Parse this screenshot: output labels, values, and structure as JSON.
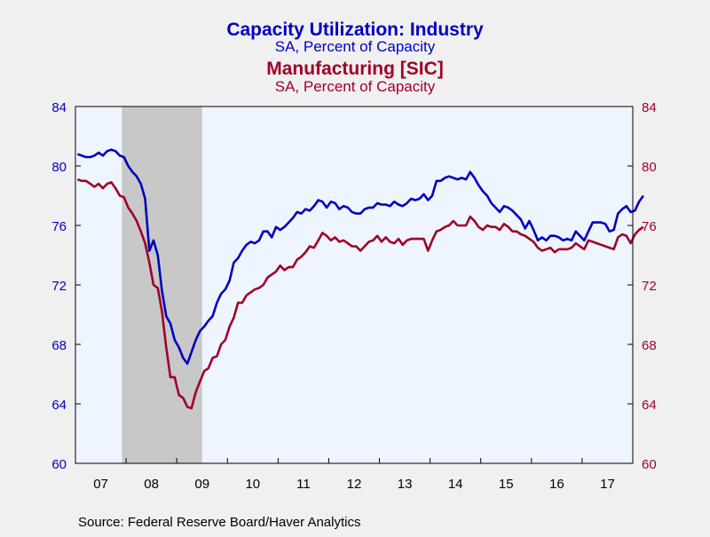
{
  "colors": {
    "background": "#f0f0f0",
    "plot_background": "#eef5ff",
    "recession": "#c8c8c8",
    "industry": "#0000c0",
    "manufacturing": "#a00028",
    "text": "#000000"
  },
  "source": "Source:  Federal Reserve Board/Haver Analytics",
  "chart_data": {
    "type": "line",
    "titles": [
      {
        "text": "Capacity Utilization: Industry",
        "color": "#0000c0",
        "role": "title"
      },
      {
        "text": "SA, Percent of Capacity",
        "color": "#0000c0",
        "role": "subtitle"
      },
      {
        "text": "Manufacturing [SIC]",
        "color": "#a00028",
        "role": "title"
      },
      {
        "text": "SA, Percent of Capacity",
        "color": "#a00028",
        "role": "subtitle"
      }
    ],
    "x_ticks": [
      "07",
      "08",
      "09",
      "10",
      "11",
      "12",
      "13",
      "14",
      "15",
      "16",
      "17"
    ],
    "x_range": [
      "2007-01",
      "2017-12"
    ],
    "y_left": {
      "range": [
        60,
        84
      ],
      "ticks": [
        60,
        64,
        68,
        72,
        76,
        80,
        84
      ],
      "color": "#0000c0"
    },
    "y_right": {
      "range": [
        60,
        84
      ],
      "ticks": [
        60,
        64,
        68,
        72,
        76,
        80,
        84
      ],
      "color": "#a00028"
    },
    "shaded_periods": [
      {
        "start": "2007-12",
        "end": "2009-06"
      }
    ],
    "grid": false,
    "series": [
      {
        "axis": "left",
        "color": "#0000c0",
        "start": "2007-01",
        "values": [
          80.8,
          80.7,
          80.6,
          80.6,
          80.7,
          80.9,
          80.7,
          81.0,
          81.1,
          81.0,
          80.7,
          80.6,
          80.0,
          79.6,
          79.3,
          78.8,
          77.8,
          74.3,
          75.0,
          74.0,
          71.6,
          69.9,
          69.4,
          68.3,
          67.8,
          67.1,
          66.7,
          67.5,
          68.3,
          68.9,
          69.2,
          69.6,
          69.9,
          70.8,
          71.4,
          71.7,
          72.3,
          73.5,
          73.8,
          74.3,
          74.7,
          74.9,
          74.8,
          75.0,
          75.6,
          75.6,
          75.2,
          75.9,
          75.7,
          75.9,
          76.2,
          76.5,
          76.9,
          76.8,
          77.1,
          77.0,
          77.3,
          77.7,
          77.6,
          77.2,
          77.6,
          77.5,
          77.1,
          77.3,
          77.2,
          76.9,
          76.8,
          76.8,
          77.1,
          77.2,
          77.2,
          77.5,
          77.4,
          77.4,
          77.3,
          77.6,
          77.4,
          77.3,
          77.5,
          77.8,
          77.7,
          77.8,
          78.1,
          77.7,
          78.0,
          79.0,
          79.0,
          79.2,
          79.3,
          79.2,
          79.1,
          79.2,
          79.1,
          79.6,
          79.2,
          78.7,
          78.3,
          78.0,
          77.5,
          77.2,
          76.9,
          77.3,
          77.2,
          77.0,
          76.7,
          76.4,
          75.8,
          76.3,
          75.7,
          75.0,
          75.2,
          75.0,
          75.3,
          75.3,
          75.2,
          75.0,
          75.1,
          75.0,
          75.6,
          75.3,
          75.0,
          75.6,
          76.2,
          76.2,
          76.2,
          76.1,
          75.6,
          75.7,
          76.8,
          77.1,
          77.3,
          76.9,
          77.0,
          77.6,
          78.0
        ]
      },
      {
        "axis": "right",
        "color": "#a00028",
        "start": "2007-01",
        "values": [
          79.1,
          79.0,
          79.0,
          78.8,
          78.6,
          78.8,
          78.5,
          78.8,
          78.9,
          78.5,
          78.0,
          77.9,
          77.2,
          76.8,
          76.3,
          75.6,
          74.8,
          73.5,
          72.0,
          71.8,
          70.2,
          67.8,
          65.8,
          65.8,
          64.6,
          64.4,
          63.8,
          63.7,
          64.8,
          65.5,
          66.2,
          66.4,
          67.1,
          67.2,
          68.0,
          68.3,
          69.2,
          69.8,
          70.8,
          70.8,
          71.3,
          71.5,
          71.7,
          71.8,
          72.0,
          72.5,
          72.7,
          72.9,
          73.3,
          73.0,
          73.2,
          73.2,
          73.7,
          73.9,
          74.2,
          74.6,
          74.5,
          75.0,
          75.5,
          75.3,
          75.0,
          75.2,
          74.9,
          75.0,
          74.8,
          74.6,
          74.6,
          74.3,
          74.6,
          74.9,
          75.0,
          75.3,
          74.9,
          75.2,
          74.9,
          74.8,
          75.1,
          74.7,
          75.0,
          75.1,
          75.1,
          75.1,
          75.1,
          74.3,
          75.0,
          75.6,
          75.7,
          75.9,
          76.0,
          76.3,
          76.0,
          76.0,
          76.0,
          76.6,
          76.3,
          75.9,
          75.7,
          76.0,
          75.9,
          75.9,
          75.7,
          76.1,
          75.9,
          75.6,
          75.6,
          75.4,
          75.3,
          75.1,
          74.9,
          74.5,
          74.3,
          74.4,
          74.5,
          74.2,
          74.4,
          74.4,
          74.4,
          74.5,
          74.8,
          74.6,
          74.4,
          75.0,
          74.9,
          74.8,
          74.7,
          74.6,
          74.5,
          74.4,
          75.2,
          75.4,
          75.3,
          74.8,
          75.4,
          75.7,
          75.9
        ]
      }
    ]
  }
}
